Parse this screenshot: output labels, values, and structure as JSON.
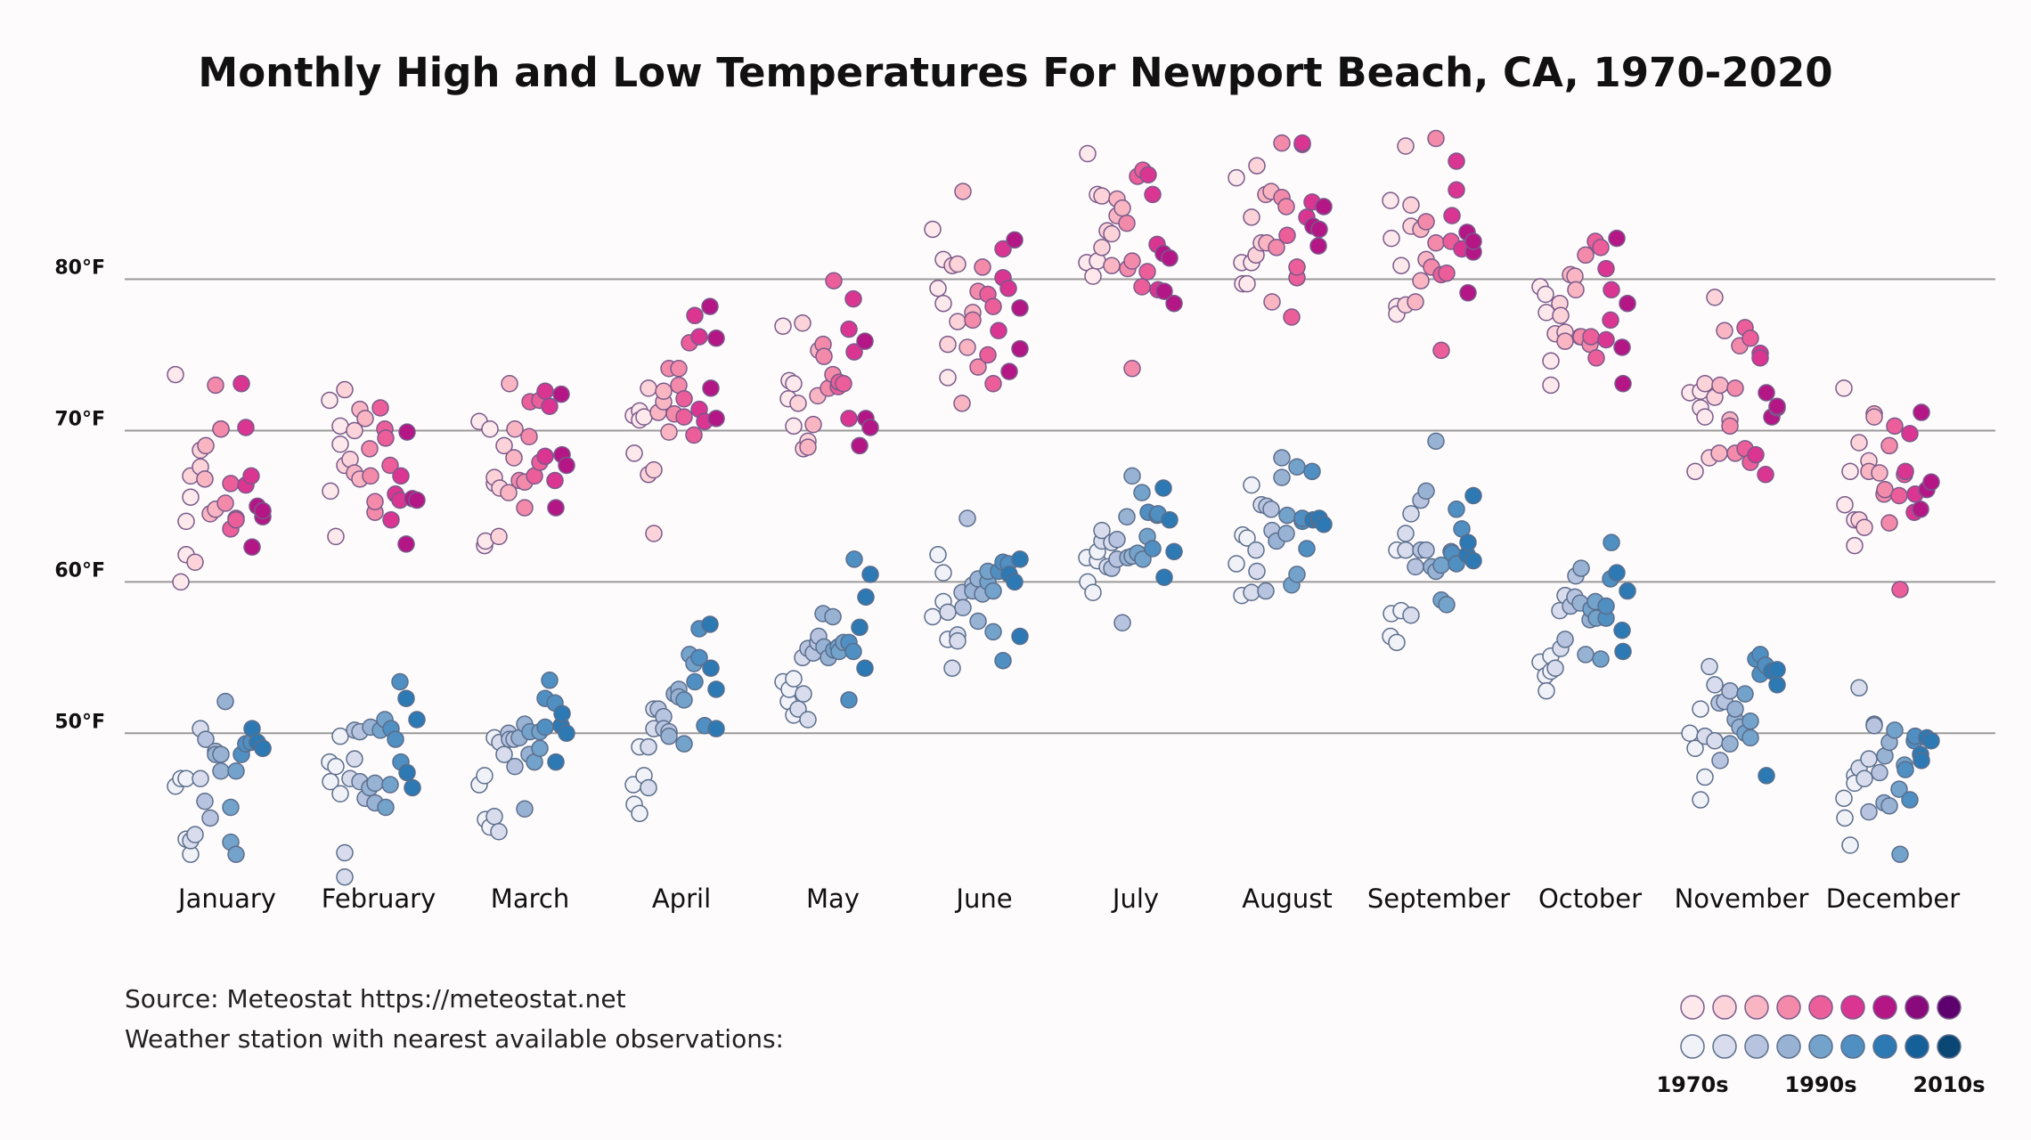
{
  "chart_data": {
    "type": "scatter",
    "title": "Monthly High and Low Temperatures For Newport Beach, CA, 1970-2020",
    "categories": [
      "January",
      "February",
      "March",
      "April",
      "May",
      "June",
      "July",
      "August",
      "September",
      "October",
      "November",
      "December"
    ],
    "yticks": [
      {
        "value": 50,
        "label": "50°F"
      },
      {
        "value": 60,
        "label": "60°F"
      },
      {
        "value": 70,
        "label": "70°F"
      },
      {
        "value": 80,
        "label": "80°F"
      }
    ],
    "ylim": [
      39.6,
      90.8
    ],
    "grid": true,
    "series": [
      {
        "key": "high",
        "values": [
          [
            73.7,
            60.0,
            61.8,
            64.0,
            65.6,
            67.0,
            61.3,
            67.6,
            68.7,
            66.8,
            69.0,
            64.5,
            64.8,
            73.0,
            70.1,
            70.1,
            65.2,
            66.5,
            63.5,
            64.2,
            64.1,
            73.1,
            66.4,
            70.2,
            67.0,
            62.3,
            65.0,
            64.3,
            64.7
          ],
          [
            72.0,
            66.0,
            63.0,
            69.1,
            70.3,
            67.7,
            72.7,
            68.1,
            70.0,
            67.2,
            71.4,
            66.8,
            70.8,
            68.8,
            67.0,
            64.6,
            65.3,
            71.5,
            70.1,
            69.5,
            67.7,
            64.1,
            65.8,
            65.4,
            67.0,
            62.5,
            69.9,
            65.5,
            65.4
          ],
          [
            70.6,
            62.4,
            62.7,
            70.1,
            66.5,
            66.9,
            63.0,
            66.2,
            69.0,
            65.9,
            73.1,
            68.2,
            70.1,
            66.7,
            66.6,
            64.9,
            69.6,
            71.9,
            67.0,
            72.0,
            67.9,
            68.3,
            72.6,
            71.6,
            66.7,
            64.9,
            72.4,
            68.4,
            67.7
          ],
          [
            71.0,
            68.5,
            71.3,
            70.7,
            70.9,
            67.1,
            72.8,
            63.2,
            67.4,
            71.2,
            71.9,
            72.6,
            69.9,
            74.1,
            71.1,
            74.1,
            73.0,
            70.9,
            72.1,
            75.8,
            69.7,
            77.6,
            71.4,
            76.2,
            70.6,
            78.2,
            72.8,
            70.8,
            76.1
          ],
          [
            76.9,
            72.1,
            73.3,
            73.1,
            70.3,
            71.8,
            77.1,
            68.8,
            69.3,
            68.9,
            70.4,
            72.3,
            75.3,
            75.7,
            74.9,
            72.8,
            73.7,
            79.9,
            72.9,
            73.2,
            73.1,
            70.8,
            76.7,
            78.7,
            75.2,
            69.0,
            75.9,
            70.8,
            70.2
          ],
          [
            83.3,
            79.4,
            78.4,
            81.3,
            73.5,
            75.7,
            80.9,
            77.2,
            81.0,
            71.8,
            85.8,
            75.5,
            77.8,
            77.3,
            79.2,
            74.2,
            80.8,
            75.0,
            79.0,
            73.1,
            78.2,
            76.6,
            82.0,
            80.1,
            79.4,
            73.9,
            82.6,
            75.4,
            78.1
          ],
          [
            81.1,
            88.3,
            80.2,
            85.6,
            81.2,
            82.1,
            85.5,
            83.2,
            83.0,
            80.9,
            84.2,
            85.3,
            84.7,
            83.7,
            80.7,
            81.2,
            74.1,
            86.8,
            79.5,
            87.2,
            80.5,
            86.9,
            85.6,
            82.3,
            79.3,
            81.7,
            79.2,
            81.4,
            78.4
          ],
          [
            86.7,
            81.1,
            79.7,
            79.7,
            81.1,
            84.1,
            81.6,
            87.5,
            82.4,
            85.6,
            82.4,
            85.8,
            78.5,
            82.1,
            85.4,
            89.0,
            84.8,
            82.9,
            77.5,
            80.1,
            80.8,
            88.9,
            89.0,
            84.1,
            85.1,
            83.5,
            82.2,
            83.3,
            84.8
          ],
          [
            85.2,
            82.7,
            78.2,
            77.7,
            80.9,
            78.3,
            88.8,
            83.5,
            84.9,
            78.5,
            83.3,
            79.9,
            81.3,
            83.8,
            80.8,
            89.3,
            82.4,
            80.3,
            75.3,
            80.4,
            82.5,
            84.2,
            85.9,
            87.8,
            82.0,
            83.1,
            79.1,
            81.8,
            82.5
          ],
          [
            79.5,
            79.0,
            77.8,
            74.6,
            73.0,
            76.4,
            78.4,
            77.6,
            76.5,
            75.9,
            80.3,
            80.2,
            79.3,
            76.2,
            76.2,
            81.6,
            75.7,
            76.2,
            82.5,
            74.8,
            82.1,
            80.7,
            76.0,
            77.3,
            79.3,
            82.7,
            75.5,
            73.1,
            78.4
          ],
          [
            72.5,
            67.3,
            72.6,
            71.5,
            70.9,
            73.1,
            68.2,
            72.2,
            78.8,
            68.5,
            73.0,
            76.6,
            70.7,
            70.3,
            72.8,
            68.5,
            75.6,
            68.8,
            76.8,
            67.9,
            76.1,
            68.4,
            75.1,
            74.8,
            67.1,
            72.5,
            70.9,
            71.5,
            71.6
          ],
          [
            72.8,
            65.1,
            67.3,
            62.4,
            64.1,
            69.2,
            64.1,
            63.6,
            68.0,
            67.3,
            71.1,
            70.9,
            67.2,
            65.8,
            66.1,
            63.9,
            69.0,
            70.3,
            65.7,
            59.5,
            67.1,
            67.3,
            69.8,
            64.6,
            65.8,
            64.8,
            71.2,
            66.1,
            66.6
          ]
        ]
      },
      {
        "key": "low",
        "values": [
          [
            46.5,
            47.0,
            43.0,
            47.0,
            42.0,
            42.9,
            43.3,
            47.0,
            50.3,
            45.5,
            49.6,
            44.4,
            48.8,
            48.6,
            48.6,
            47.5,
            52.1,
            45.1,
            42.8,
            42.0,
            47.5,
            48.6,
            49.3,
            49.3,
            49.4,
            50.3,
            49.4,
            49.0,
            49.0
          ],
          [
            48.1,
            46.8,
            47.8,
            46.0,
            49.8,
            42.1,
            40.5,
            47.0,
            48.3,
            50.2,
            46.8,
            50.1,
            45.7,
            46.4,
            50.4,
            46.7,
            45.4,
            50.2,
            50.9,
            45.1,
            46.6,
            50.3,
            49.6,
            53.4,
            48.1,
            52.3,
            47.4,
            46.4,
            50.9
          ],
          [
            46.6,
            47.2,
            44.3,
            43.8,
            49.7,
            44.5,
            43.5,
            49.4,
            48.6,
            50.0,
            49.6,
            49.6,
            47.8,
            49.7,
            45.0,
            50.6,
            48.6,
            50.1,
            48.1,
            50.1,
            49.0,
            52.3,
            50.4,
            53.5,
            52.0,
            48.1,
            50.5,
            51.3,
            50.0
          ],
          [
            46.6,
            45.3,
            49.1,
            44.7,
            47.2,
            46.4,
            49.1,
            51.6,
            50.3,
            51.6,
            51.1,
            50.3,
            50.1,
            49.8,
            52.6,
            52.9,
            52.4,
            52.2,
            49.3,
            55.2,
            54.6,
            53.4,
            56.9,
            55.0,
            50.5,
            57.2,
            54.3,
            52.9,
            50.3
          ],
          [
            53.4,
            52.1,
            52.9,
            53.6,
            51.2,
            51.6,
            55.0,
            52.6,
            50.9,
            55.6,
            55.3,
            56.0,
            56.4,
            57.9,
            55.7,
            55.0,
            57.7,
            55.5,
            55.7,
            55.4,
            56.0,
            52.2,
            56.0,
            55.4,
            61.5,
            57.0,
            54.3,
            59.0,
            60.5
          ],
          [
            57.7,
            61.8,
            58.7,
            60.6,
            56.2,
            58.0,
            54.3,
            56.5,
            56.1,
            59.3,
            58.3,
            64.2,
            59.8,
            59.4,
            60.2,
            57.4,
            59.2,
            60.0,
            60.7,
            59.4,
            56.7,
            60.7,
            61.3,
            54.8,
            61.2,
            60.5,
            60.0,
            56.4,
            61.5
          ],
          [
            61.6,
            60.0,
            59.3,
            61.4,
            62.0,
            62.7,
            63.4,
            61.0,
            62.6,
            60.9,
            61.5,
            62.8,
            57.3,
            64.3,
            61.6,
            61.7,
            67.0,
            61.9,
            65.9,
            61.5,
            63.0,
            64.6,
            62.2,
            64.4,
            64.5,
            66.2,
            60.3,
            64.1,
            62.0
          ],
          [
            61.2,
            59.1,
            63.1,
            62.9,
            66.4,
            59.3,
            62.1,
            60.7,
            65.1,
            59.4,
            65.0,
            64.8,
            63.4,
            62.7,
            66.9,
            68.2,
            63.2,
            64.4,
            59.8,
            60.5,
            67.6,
            64.0,
            64.2,
            62.2,
            67.3,
            64.1,
            64.1,
            64.2,
            63.8
          ],
          [
            56.4,
            57.9,
            56.0,
            62.1,
            58.1,
            63.2,
            62.1,
            57.8,
            64.5,
            61.0,
            62.1,
            65.4,
            62.1,
            66.0,
            61.0,
            60.7,
            69.3,
            58.8,
            61.1,
            58.5,
            62.0,
            61.9,
            61.2,
            64.8,
            63.5,
            61.8,
            62.6,
            61.4,
            65.7
          ],
          [
            54.7,
            53.8,
            52.8,
            55.1,
            54.1,
            54.3,
            58.1,
            55.6,
            59.1,
            56.2,
            58.4,
            59.0,
            60.4,
            58.6,
            60.9,
            55.2,
            57.5,
            58.2,
            58.7,
            57.6,
            54.9,
            57.6,
            58.4,
            60.2,
            62.6,
            60.6,
            56.8,
            55.4,
            59.4
          ],
          [
            50.0,
            49.0,
            45.6,
            51.6,
            47.1,
            49.8,
            54.4,
            53.2,
            49.5,
            52.0,
            48.2,
            52.1,
            52.8,
            49.3,
            50.9,
            51.6,
            50.4,
            52.6,
            50.0,
            49.7,
            50.8,
            54.9,
            53.9,
            55.2,
            54.5,
            47.2,
            54.1,
            53.2,
            54.2
          ],
          [
            45.7,
            44.4,
            42.6,
            47.2,
            46.7,
            53.0,
            47.7,
            47.0,
            48.3,
            44.8,
            50.6,
            50.5,
            47.4,
            45.4,
            48.5,
            45.2,
            49.4,
            50.2,
            46.3,
            42.0,
            47.9,
            47.6,
            45.6,
            49.5,
            49.8,
            48.6,
            48.2,
            49.7,
            49.5
          ]
        ]
      }
    ],
    "decade_labels": [
      "1970s",
      "1990s",
      "2010s"
    ],
    "colors": {
      "high_ramp": [
        "#fde8ec",
        "#fcd3d9",
        "#f9b5c2",
        "#f48aaa",
        "#ec5e99",
        "#db3592",
        "#b41686",
        "#8a0a7b",
        "#5e016f"
      ],
      "low_ramp": [
        "#f1f1f8",
        "#d8dcec",
        "#b8c4df",
        "#98b2d4",
        "#73a2cb",
        "#4f8fc2",
        "#2d79b3",
        "#16609a",
        "#0a4775"
      ],
      "high_stroke": "#7a5a8a",
      "low_stroke": "#5a6e8c",
      "grid": "#9a9a9a"
    },
    "source_lines": [
      "Source: Meteostat https://meteostat.net",
      "Weather station with nearest available observations:"
    ]
  }
}
